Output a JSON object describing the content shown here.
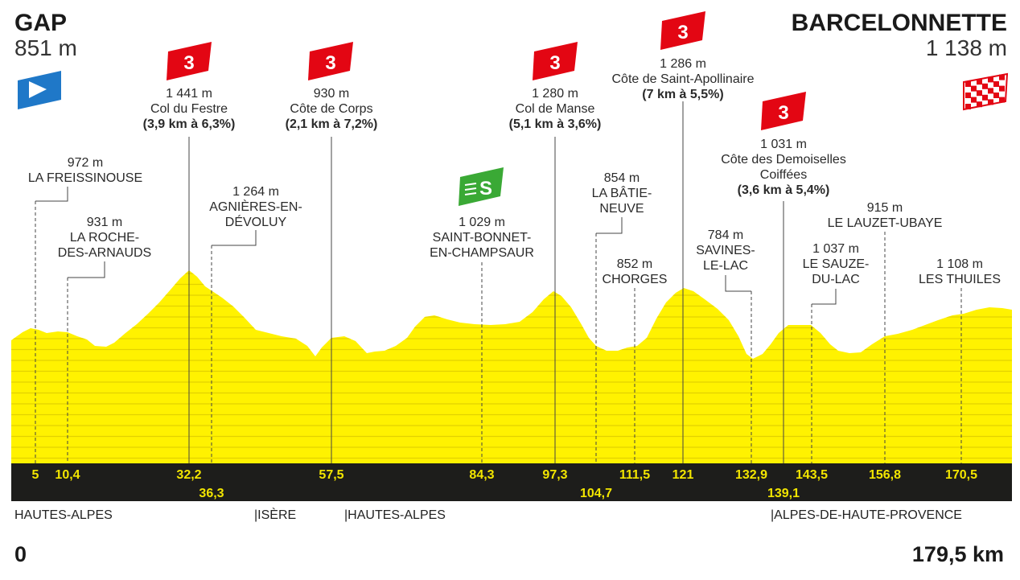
{
  "start": {
    "name": "GAP",
    "altitude": "851 m"
  },
  "finish": {
    "name": "BARCELONNETTE",
    "altitude": "1 138 m"
  },
  "distance": {
    "start": "0",
    "end": "179,5 km"
  },
  "colors": {
    "profile": "#fff200",
    "profile_lines": "#e6d600",
    "km_bar": "#1d1d1b",
    "km_text": "#f2e500",
    "climb_badge": "#e30613",
    "sprint_badge": "#3aa935",
    "start_flag": "#1f78c8"
  },
  "icons": {
    "start": "start-flag-icon",
    "finish": "finish-checkered-flag-icon",
    "climb": "category-3-climb-icon",
    "sprint": "intermediate-sprint-icon"
  },
  "climbs": [
    {
      "category": "3",
      "altitude": "1 441 m",
      "name": "Col du Festre",
      "detail": "(3,9 km à 6,3%)"
    },
    {
      "category": "3",
      "altitude": "930 m",
      "name": "Côte de Corps",
      "detail": "(2,1 km à 7,2%)"
    },
    {
      "category": "3",
      "altitude": "1 280 m",
      "name": "Col de Manse",
      "detail": "(5,1 km à 3,6%)"
    },
    {
      "category": "3",
      "altitude": "1 286 m",
      "name": "Côte de Saint-Apollinaire",
      "detail": "(7 km à 5,5%)"
    },
    {
      "category": "3",
      "altitude": "1 031 m",
      "name": "Côte des Demoiselles",
      "name2": "Coiffées",
      "detail": "(3,6 km à 5,4%)"
    }
  ],
  "sprint": {
    "label": "S",
    "altitude": "1 029 m",
    "line1": "SAINT-BONNET-",
    "line2": "EN-CHAMPSAUR"
  },
  "places": [
    {
      "altitude": "972 m",
      "line1": "LA FREISSINOUSE"
    },
    {
      "altitude": "931 m",
      "line1": "LA ROCHE-",
      "line2": "DES-ARNAUDS"
    },
    {
      "altitude": "1 264 m",
      "line1": "AGNIÈRES-EN-",
      "line2": "DÉVOLUY"
    },
    {
      "altitude": "854 m",
      "line1": "LA BÂTIE-",
      "line2": "NEUVE"
    },
    {
      "altitude": "852 m",
      "line1": "CHORGES"
    },
    {
      "altitude": "784 m",
      "line1": "SAVINES-",
      "line2": "LE-LAC"
    },
    {
      "altitude": "1 037 m",
      "line1": "LE SAUZE-",
      "line2": "DU-LAC"
    },
    {
      "altitude": "915 m",
      "line1": "LE LAUZET-UBAYE"
    },
    {
      "altitude": "1 108 m",
      "line1": "LES THUILES"
    }
  ],
  "km_markers": [
    "5",
    "10,4",
    "32,2",
    "36,3",
    "57,5",
    "84,3",
    "97,3",
    "104,7",
    "111,5",
    "121",
    "132,9",
    "139,1",
    "143,5",
    "156,8",
    "170,5"
  ],
  "regions": [
    "HAUTES-ALPES",
    "|ISÈRE",
    "|HAUTES-ALPES",
    "|ALPES-DE-HAUTE-PROVENCE"
  ]
}
